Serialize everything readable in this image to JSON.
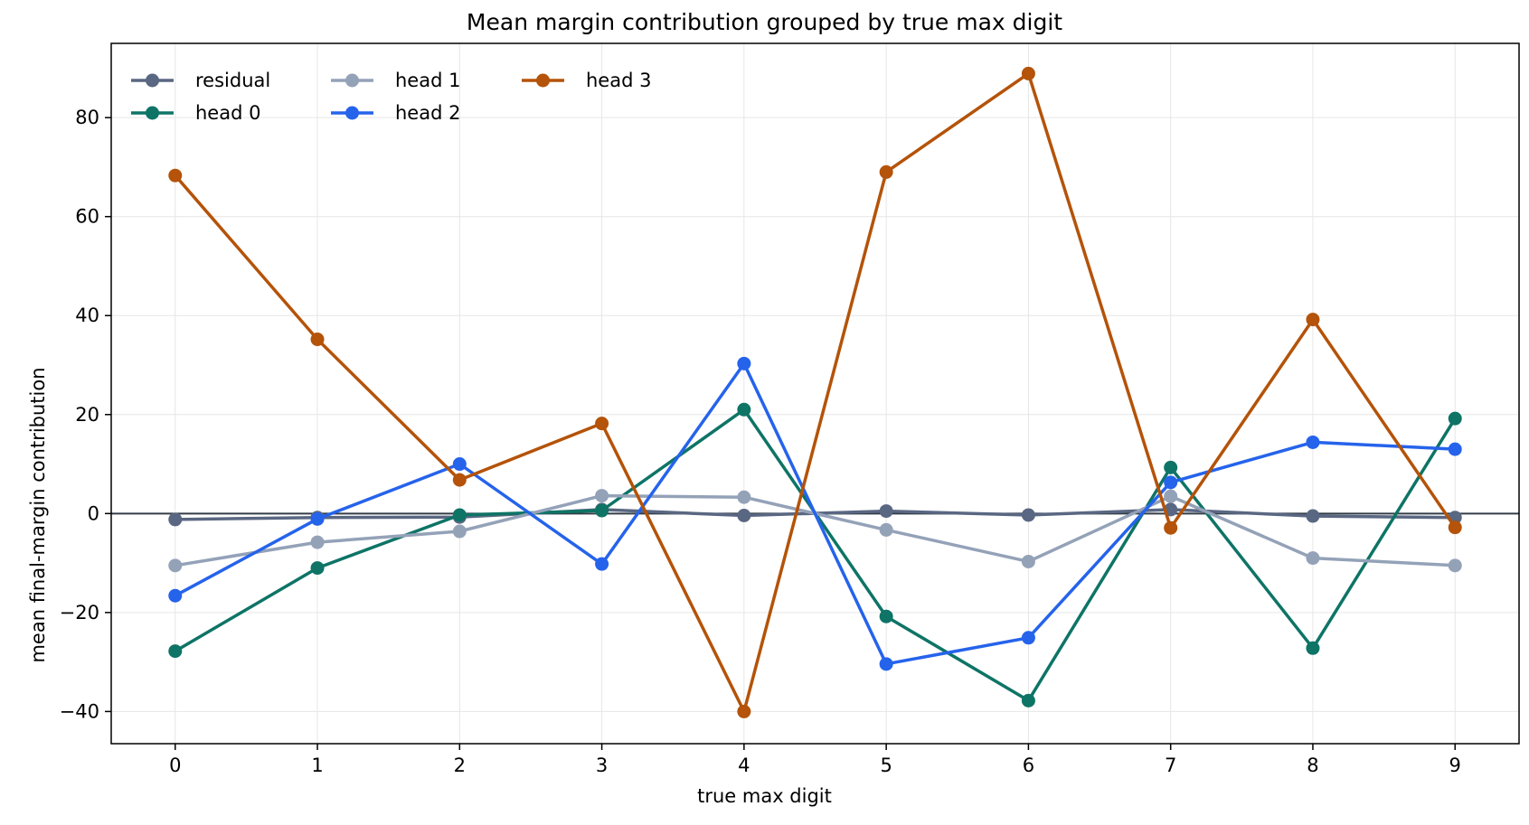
{
  "chart_data": {
    "type": "line",
    "title": "Mean margin contribution grouped by true max digit",
    "xlabel": "true max digit",
    "ylabel": "mean final-margin contribution",
    "x": [
      0,
      1,
      2,
      3,
      4,
      5,
      6,
      7,
      8,
      9
    ],
    "xlim": [
      -0.45,
      9.45
    ],
    "ylim": [
      -46.5,
      95
    ],
    "yticks": [
      -40,
      -20,
      0,
      20,
      40,
      60,
      80
    ],
    "ytick_labels": [
      "−40",
      "−20",
      "0",
      "20",
      "40",
      "60",
      "80"
    ],
    "xtick_labels": [
      "0",
      "1",
      "2",
      "3",
      "4",
      "5",
      "6",
      "7",
      "8",
      "9"
    ],
    "grid": true,
    "zero_line": true,
    "legend": {
      "placement": "top-left",
      "columns": 3
    },
    "series": [
      {
        "name": "residual",
        "color": "#5a6782",
        "values": [
          -1.2,
          -0.8,
          -0.7,
          0.8,
          -0.4,
          0.5,
          -0.3,
          0.8,
          -0.5,
          -0.8
        ]
      },
      {
        "name": "head 0",
        "color": "#0e7466",
        "values": [
          -27.8,
          -11.0,
          -0.3,
          0.6,
          21.0,
          -20.8,
          -37.8,
          9.3,
          -27.2,
          19.2
        ]
      },
      {
        "name": "head 1",
        "color": "#94a2b8",
        "values": [
          -10.5,
          -5.8,
          -3.6,
          3.6,
          3.3,
          -3.3,
          -9.7,
          3.5,
          -9.0,
          -10.5
        ]
      },
      {
        "name": "head 2",
        "color": "#2563eb",
        "values": [
          -16.6,
          -1.1,
          10.0,
          -10.2,
          30.3,
          -30.4,
          -25.1,
          6.3,
          14.4,
          13.0
        ]
      },
      {
        "name": "head 3",
        "color": "#b45309",
        "values": [
          68.3,
          35.2,
          6.8,
          18.2,
          -40.0,
          69.0,
          88.9,
          -2.9,
          39.2,
          -2.8
        ]
      }
    ]
  }
}
